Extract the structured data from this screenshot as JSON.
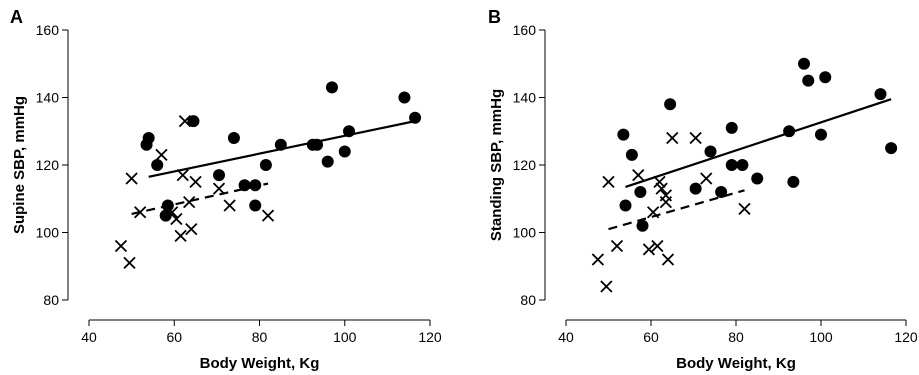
{
  "chart_data": [
    {
      "type": "scatter",
      "panel_label": "A",
      "xlabel": "Body Weight, Kg",
      "ylabel": "Supine SBP, mmHg",
      "xlim": [
        40,
        120
      ],
      "ylim": [
        80,
        160
      ],
      "xticks": [
        "40",
        "60",
        "80",
        "100",
        "120"
      ],
      "yticks": [
        "80",
        "100",
        "120",
        "140",
        "160"
      ],
      "grid": false,
      "series": [
        {
          "marker": "filled-circle",
          "points": [
            [
              54,
              128
            ],
            [
              53.5,
              126
            ],
            [
              56,
              120
            ],
            [
              58,
              105
            ],
            [
              58.5,
              108
            ],
            [
              64.5,
              133
            ],
            [
              70.5,
              117
            ],
            [
              74,
              128
            ],
            [
              76.5,
              114
            ],
            [
              79,
              114
            ],
            [
              79,
              108
            ],
            [
              81.5,
              120
            ],
            [
              85,
              126
            ],
            [
              92.5,
              126
            ],
            [
              93.5,
              126
            ],
            [
              96,
              121
            ],
            [
              97,
              143
            ],
            [
              100,
              124
            ],
            [
              101,
              130
            ],
            [
              114,
              140
            ],
            [
              116.5,
              134
            ]
          ]
        },
        {
          "marker": "cross",
          "points": [
            [
              47.5,
              96
            ],
            [
              49.5,
              91
            ],
            [
              50,
              116
            ],
            [
              52,
              106
            ],
            [
              57,
              123
            ],
            [
              59.5,
              106
            ],
            [
              60.5,
              104
            ],
            [
              61.5,
              99
            ],
            [
              62,
              117
            ],
            [
              62.5,
              133
            ],
            [
              63.5,
              109
            ],
            [
              64,
              101
            ],
            [
              65,
              115
            ],
            [
              70.5,
              113
            ],
            [
              73,
              108
            ],
            [
              82,
              105
            ]
          ]
        }
      ],
      "fit_lines": [
        {
          "style": "solid",
          "x": [
            54,
            116.5
          ],
          "y": [
            116.5,
            133
          ]
        },
        {
          "style": "dashed",
          "x": [
            50,
            82
          ],
          "y": [
            105.5,
            114.5
          ]
        }
      ]
    },
    {
      "type": "scatter",
      "panel_label": "B",
      "xlabel": "Body Weight, Kg",
      "ylabel": "Standing SBP, mmHg",
      "xlim": [
        40,
        120
      ],
      "ylim": [
        80,
        160
      ],
      "xticks": [
        "40",
        "60",
        "80",
        "100",
        "120"
      ],
      "yticks": [
        "80",
        "100",
        "120",
        "140",
        "160"
      ],
      "grid": false,
      "series": [
        {
          "marker": "filled-circle",
          "points": [
            [
              53.5,
              129
            ],
            [
              54,
              108
            ],
            [
              55.5,
              123
            ],
            [
              57.5,
              112
            ],
            [
              58,
              102
            ],
            [
              64.5,
              138
            ],
            [
              70.5,
              113
            ],
            [
              74,
              124
            ],
            [
              76.5,
              112
            ],
            [
              79,
              131
            ],
            [
              79,
              120
            ],
            [
              81.5,
              120
            ],
            [
              85,
              116
            ],
            [
              92.5,
              130
            ],
            [
              93.5,
              115
            ],
            [
              96,
              150
            ],
            [
              97,
              145
            ],
            [
              100,
              129
            ],
            [
              101,
              146
            ],
            [
              114,
              141
            ],
            [
              116.5,
              125
            ]
          ]
        },
        {
          "marker": "cross",
          "points": [
            [
              47.5,
              92
            ],
            [
              49.5,
              84
            ],
            [
              50,
              115
            ],
            [
              52,
              96
            ],
            [
              57,
              117
            ],
            [
              59.5,
              95
            ],
            [
              60.5,
              106
            ],
            [
              61.5,
              96
            ],
            [
              62,
              115
            ],
            [
              62.5,
              113
            ],
            [
              63.5,
              111
            ],
            [
              63.5,
              109
            ],
            [
              64,
              92
            ],
            [
              65,
              128
            ],
            [
              70.5,
              128
            ],
            [
              73,
              116
            ],
            [
              82,
              107
            ]
          ]
        }
      ],
      "fit_lines": [
        {
          "style": "solid",
          "x": [
            54,
            116.5
          ],
          "y": [
            113.5,
            139.5
          ]
        },
        {
          "style": "dashed",
          "x": [
            50,
            82
          ],
          "y": [
            101,
            112.5
          ]
        }
      ]
    }
  ]
}
